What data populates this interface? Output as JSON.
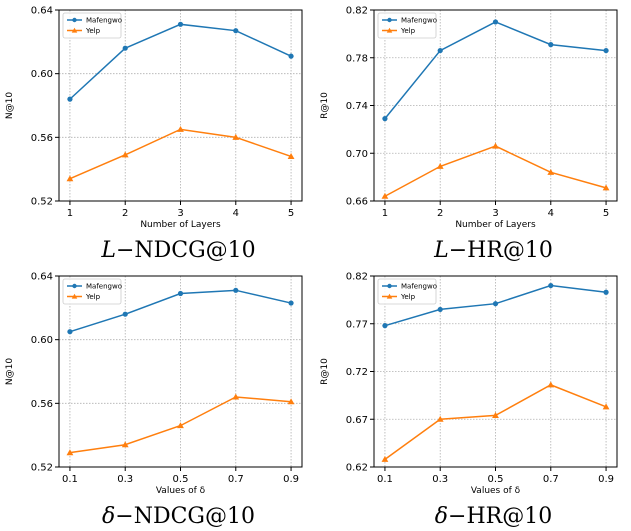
{
  "colors": {
    "Mafengwo": "#1f77b4",
    "Yelp": "#ff7f0e"
  },
  "chart_data": [
    {
      "type": "line",
      "caption_symbol": "L",
      "caption_metric": "NDCG@10",
      "xlabel": "Number of Layers",
      "ylabel": "N@10",
      "x": [
        "1",
        "2",
        "3",
        "4",
        "5"
      ],
      "yticks": [
        "0.52",
        "0.56",
        "0.60",
        "0.64"
      ],
      "ylim": [
        0.52,
        0.64
      ],
      "grid": true,
      "legend": "top-left",
      "series": [
        {
          "name": "Mafengwo",
          "marker": "circle",
          "values": [
            0.584,
            0.616,
            0.631,
            0.627,
            0.611
          ]
        },
        {
          "name": "Yelp",
          "marker": "triangle",
          "values": [
            0.534,
            0.549,
            0.565,
            0.56,
            0.548
          ]
        }
      ]
    },
    {
      "type": "line",
      "caption_symbol": "L",
      "caption_metric": "HR@10",
      "xlabel": "Number of Layers",
      "ylabel": "R@10",
      "x": [
        "1",
        "2",
        "3",
        "4",
        "5"
      ],
      "yticks": [
        "0.66",
        "0.70",
        "0.74",
        "0.78",
        "0.82"
      ],
      "ylim": [
        0.66,
        0.82
      ],
      "grid": true,
      "legend": "top-left",
      "series": [
        {
          "name": "Mafengwo",
          "marker": "circle",
          "values": [
            0.729,
            0.786,
            0.81,
            0.791,
            0.786
          ]
        },
        {
          "name": "Yelp",
          "marker": "triangle",
          "values": [
            0.664,
            0.689,
            0.706,
            0.684,
            0.671
          ]
        }
      ]
    },
    {
      "type": "line",
      "caption_symbol": "δ",
      "caption_metric": "NDCG@10",
      "xlabel": "Values of δ",
      "ylabel": "N@10",
      "x": [
        "0.1",
        "0.3",
        "0.5",
        "0.7",
        "0.9"
      ],
      "yticks": [
        "0.52",
        "0.56",
        "0.60",
        "0.64"
      ],
      "ylim": [
        0.52,
        0.64
      ],
      "grid": true,
      "legend": "top-left",
      "series": [
        {
          "name": "Mafengwo",
          "marker": "circle",
          "values": [
            0.605,
            0.616,
            0.629,
            0.631,
            0.623
          ]
        },
        {
          "name": "Yelp",
          "marker": "triangle",
          "values": [
            0.529,
            0.534,
            0.546,
            0.564,
            0.561
          ]
        }
      ]
    },
    {
      "type": "line",
      "caption_symbol": "δ",
      "caption_metric": "HR@10",
      "xlabel": "Values of δ",
      "ylabel": "R@10",
      "x": [
        "0.1",
        "0.3",
        "0.5",
        "0.7",
        "0.9"
      ],
      "yticks": [
        "0.62",
        "0.67",
        "0.72",
        "0.77",
        "0.82"
      ],
      "ylim": [
        0.62,
        0.82
      ],
      "grid": true,
      "legend": "top-left",
      "series": [
        {
          "name": "Mafengwo",
          "marker": "circle",
          "values": [
            0.768,
            0.785,
            0.791,
            0.81,
            0.803
          ]
        },
        {
          "name": "Yelp",
          "marker": "triangle",
          "values": [
            0.628,
            0.67,
            0.674,
            0.706,
            0.683
          ]
        }
      ]
    }
  ]
}
